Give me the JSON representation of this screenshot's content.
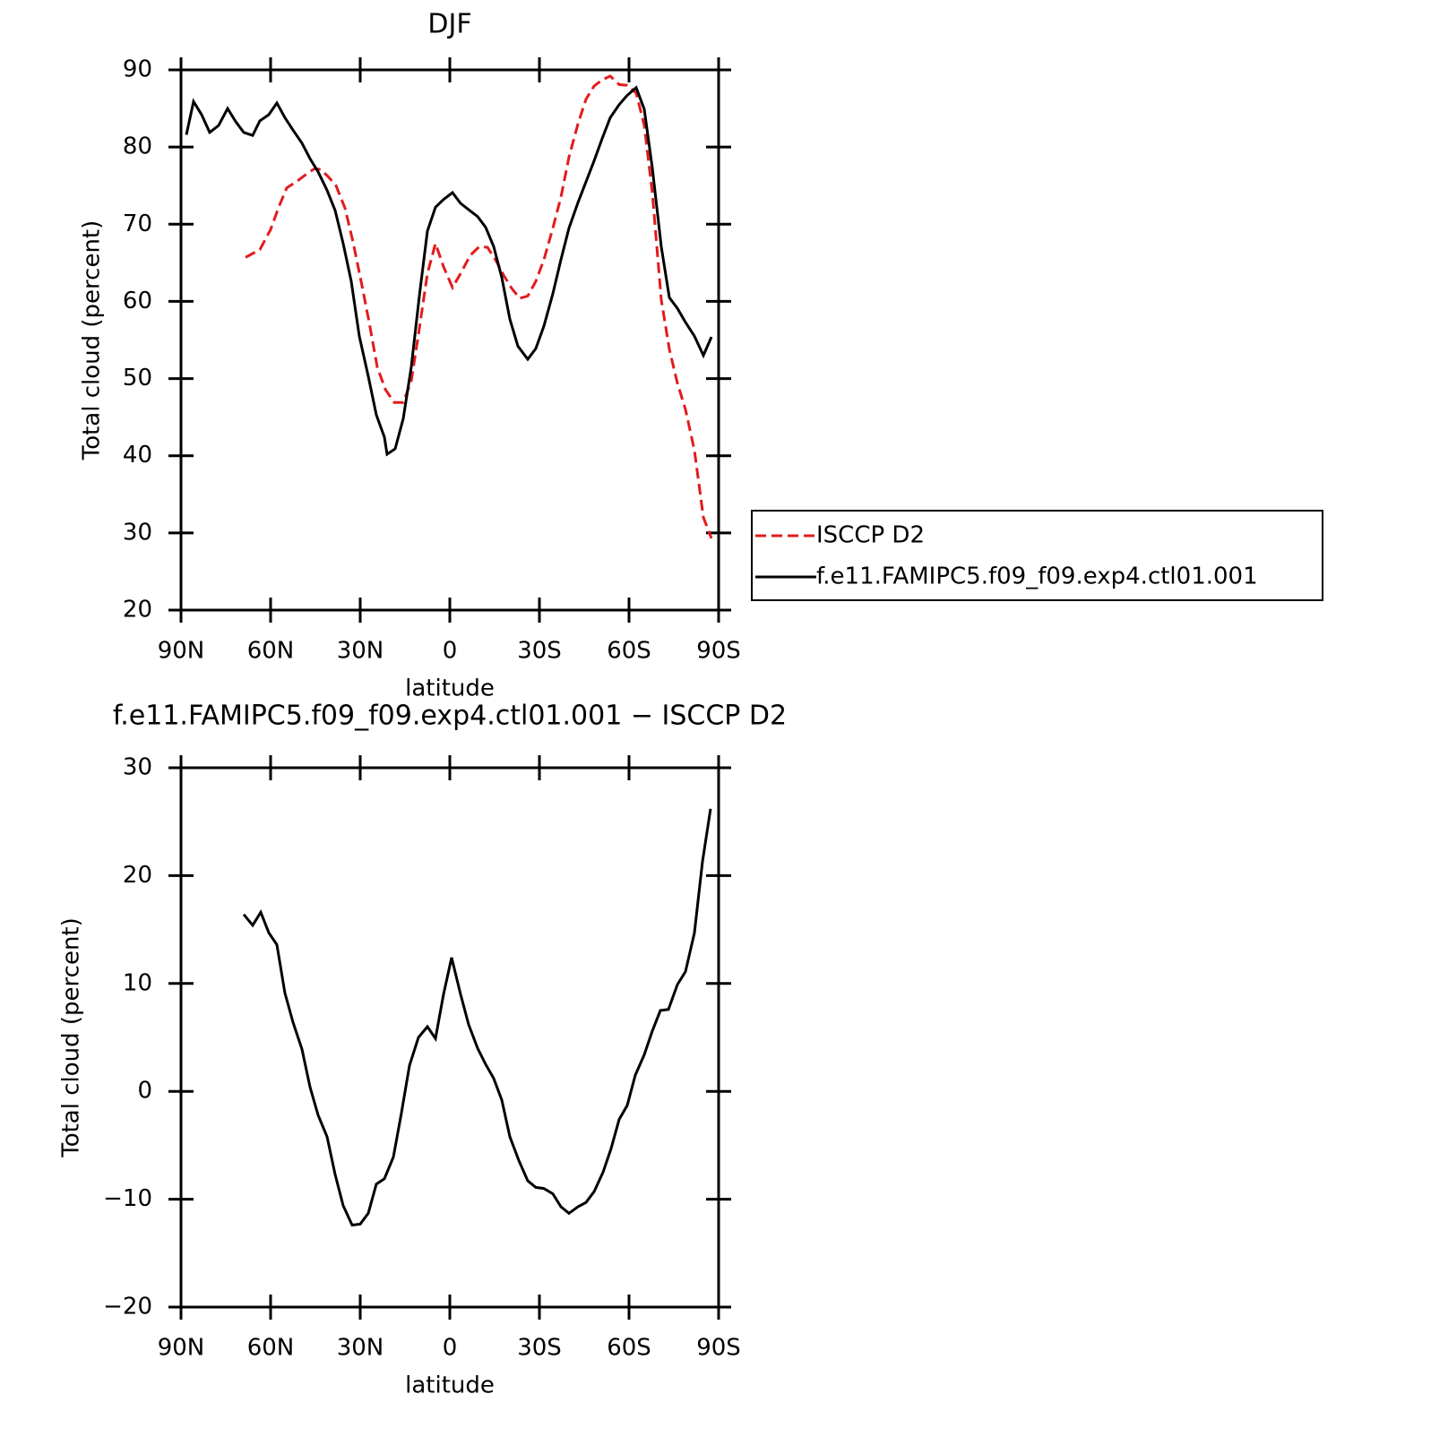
{
  "chart_data": [
    {
      "type": "line",
      "title": "DJF",
      "xlabel": "latitude",
      "ylabel": "Total cloud (percent)",
      "xlim": [
        90,
        -90
      ],
      "ylim": [
        20,
        90
      ],
      "xticks": [
        {
          "value": 90,
          "label": "90N"
        },
        {
          "value": 60,
          "label": "60N"
        },
        {
          "value": 30,
          "label": "30N"
        },
        0,
        {
          "value": -30,
          "label": "30S"
        },
        {
          "value": -60,
          "label": "60S"
        },
        {
          "value": -90,
          "label": "90S"
        }
      ],
      "yticks": [
        20,
        30,
        40,
        50,
        60,
        70,
        80,
        90
      ],
      "legend": "right",
      "series": [
        {
          "name": "ISCCP D2",
          "color": "#e41a1c",
          "linestyle": "dashed",
          "x": [
            68.4,
            63.6,
            60,
            57.3,
            54.6,
            51,
            48,
            45.3,
            43.2,
            40.8,
            38.1,
            35.1,
            32.4,
            29.7,
            27,
            24.3,
            21.6,
            18.6,
            15.6,
            12.9,
            10.2,
            7.5,
            4.8,
            2.1,
            -0.9,
            -3.6,
            -6.9,
            -9.9,
            -12.6,
            -15.3,
            -18,
            -20.7,
            -23.4,
            -26.1,
            -28.8,
            -31.5,
            -34.5,
            -37.2,
            -39.9,
            -42.9,
            -45.6,
            -48.3,
            -51,
            -53.7,
            -56.7,
            -59.4,
            -62.4,
            -65.1,
            -67.8,
            -70.8,
            -73.5,
            -76.2,
            -78.9,
            -81.9,
            -84.9,
            -87.6
          ],
          "values": [
            65.7,
            66.7,
            69.3,
            72.2,
            74.7,
            75.6,
            76.5,
            77.2,
            77.1,
            76.2,
            75.0,
            72.1,
            67.7,
            62.6,
            57.3,
            51.5,
            48.6,
            46.9,
            46.9,
            49.7,
            56.5,
            63.6,
            67.5,
            64.5,
            61.8,
            63.6,
            66.0,
            67.1,
            67.0,
            65.4,
            63.4,
            61.7,
            60.4,
            60.7,
            62.6,
            65.4,
            69.5,
            73.5,
            78.7,
            83.0,
            86.2,
            87.9,
            88.7,
            89.2,
            88.1,
            88.0,
            87.0,
            82.8,
            74.1,
            60.2,
            53.8,
            49.4,
            46.0,
            40.7,
            32.0,
            29.3
          ]
        },
        {
          "name": "f.e11.FAMIPC5.f09_f09.exp4.ctl01.001",
          "color": "#000000",
          "linestyle": "solid",
          "x": [
            88.2,
            85.8,
            83.1,
            80.4,
            77.4,
            74.4,
            71.7,
            69,
            66,
            63.6,
            60.6,
            57.9,
            55.2,
            52.5,
            49.5,
            46.8,
            44.1,
            41.1,
            38.4,
            35.7,
            33,
            30.3,
            27.3,
            24.6,
            21.9,
            21,
            18.3,
            15.6,
            12.9,
            10.2,
            7.5,
            4.8,
            2.1,
            -0.9,
            -3.6,
            -6.6,
            -9.3,
            -12,
            -14.7,
            -17.4,
            -20.1,
            -22.8,
            -26.1,
            -28.8,
            -31.5,
            -34.5,
            -37.2,
            -39.9,
            -42.9,
            -45.6,
            -48.3,
            -51,
            -53.7,
            -56.7,
            -59.4,
            -62.4,
            -65.1,
            -67.8,
            -70.8,
            -73.5,
            -76.2,
            -78.9,
            -81.9,
            -84.9,
            -87.6
          ],
          "values": [
            81.6,
            85.9,
            84.2,
            81.9,
            82.8,
            85.0,
            83.3,
            81.9,
            81.5,
            83.4,
            84.2,
            85.7,
            83.8,
            82.2,
            80.5,
            78.5,
            76.8,
            74.4,
            71.8,
            67.5,
            62.6,
            55.5,
            50.3,
            45.3,
            42.4,
            40.2,
            40.9,
            44.8,
            51.5,
            60.7,
            69.1,
            72.2,
            73.2,
            74.1,
            72.7,
            71.8,
            71.0,
            69.6,
            67.1,
            63.1,
            57.7,
            54.2,
            52.5,
            53.9,
            56.8,
            61.0,
            65.4,
            69.5,
            72.8,
            75.5,
            78.2,
            81.1,
            83.8,
            85.5,
            86.7,
            87.7,
            84.9,
            77.3,
            67.1,
            60.5,
            59.1,
            57.3,
            55.5,
            53.0,
            55.4
          ]
        }
      ]
    },
    {
      "type": "line",
      "title": "f.e11.FAMIPC5.f09_f09.exp4.ctl01.001 − ISCCP D2",
      "xlabel": "latitude",
      "ylabel": "Total cloud (percent)",
      "xlim": [
        90,
        -90
      ],
      "ylim": [
        -20,
        30
      ],
      "xticks": [
        {
          "value": 90,
          "label": "90N"
        },
        {
          "value": 60,
          "label": "60N"
        },
        {
          "value": 30,
          "label": "30N"
        },
        0,
        {
          "value": -30,
          "label": "30S"
        },
        {
          "value": -60,
          "label": "60S"
        },
        {
          "value": -90,
          "label": "90S"
        }
      ],
      "yticks": [
        {
          "value": -20,
          "label": "−20"
        },
        {
          "value": -10,
          "label": "−10"
        },
        0,
        10,
        20,
        30
      ],
      "series": [
        {
          "color": "#000000",
          "linestyle": "solid",
          "x": [
            69,
            66,
            63.3,
            60.6,
            57.9,
            55.2,
            52.5,
            49.5,
            46.8,
            44.1,
            41.1,
            38.4,
            35.7,
            32.7,
            30,
            27.3,
            24.6,
            21.9,
            18.9,
            16.2,
            13.5,
            10.5,
            7.5,
            4.8,
            2.1,
            -0.6,
            -3.6,
            -6.3,
            -9.3,
            -12,
            -14.7,
            -17.4,
            -20.1,
            -23.1,
            -26.1,
            -28.8,
            -31.5,
            -34.5,
            -37.2,
            -39.9,
            -42.9,
            -45.6,
            -48.3,
            -51.3,
            -54,
            -56.7,
            -59.4,
            -62.1,
            -65.1,
            -67.8,
            -70.5,
            -73.2,
            -76.2,
            -78.9,
            -81.9,
            -84.6,
            -87.3
          ],
          "values": [
            16.4,
            15.4,
            16.6,
            14.7,
            13.6,
            9.1,
            6.4,
            3.9,
            0.4,
            -2.2,
            -4.2,
            -7.7,
            -10.6,
            -12.4,
            -12.3,
            -11.3,
            -8.6,
            -8.1,
            -6.1,
            -2.0,
            2.4,
            5.0,
            6.0,
            4.9,
            9.0,
            12.4,
            9.0,
            6.2,
            4.0,
            2.5,
            1.2,
            -0.8,
            -4.2,
            -6.4,
            -8.3,
            -8.9,
            -9.0,
            -9.5,
            -10.7,
            -11.3,
            -10.7,
            -10.3,
            -9.3,
            -7.5,
            -5.3,
            -2.6,
            -1.3,
            1.5,
            3.4,
            5.6,
            7.5,
            7.6,
            9.9,
            11.1,
            14.7,
            21.3,
            26.2
          ]
        }
      ]
    }
  ]
}
